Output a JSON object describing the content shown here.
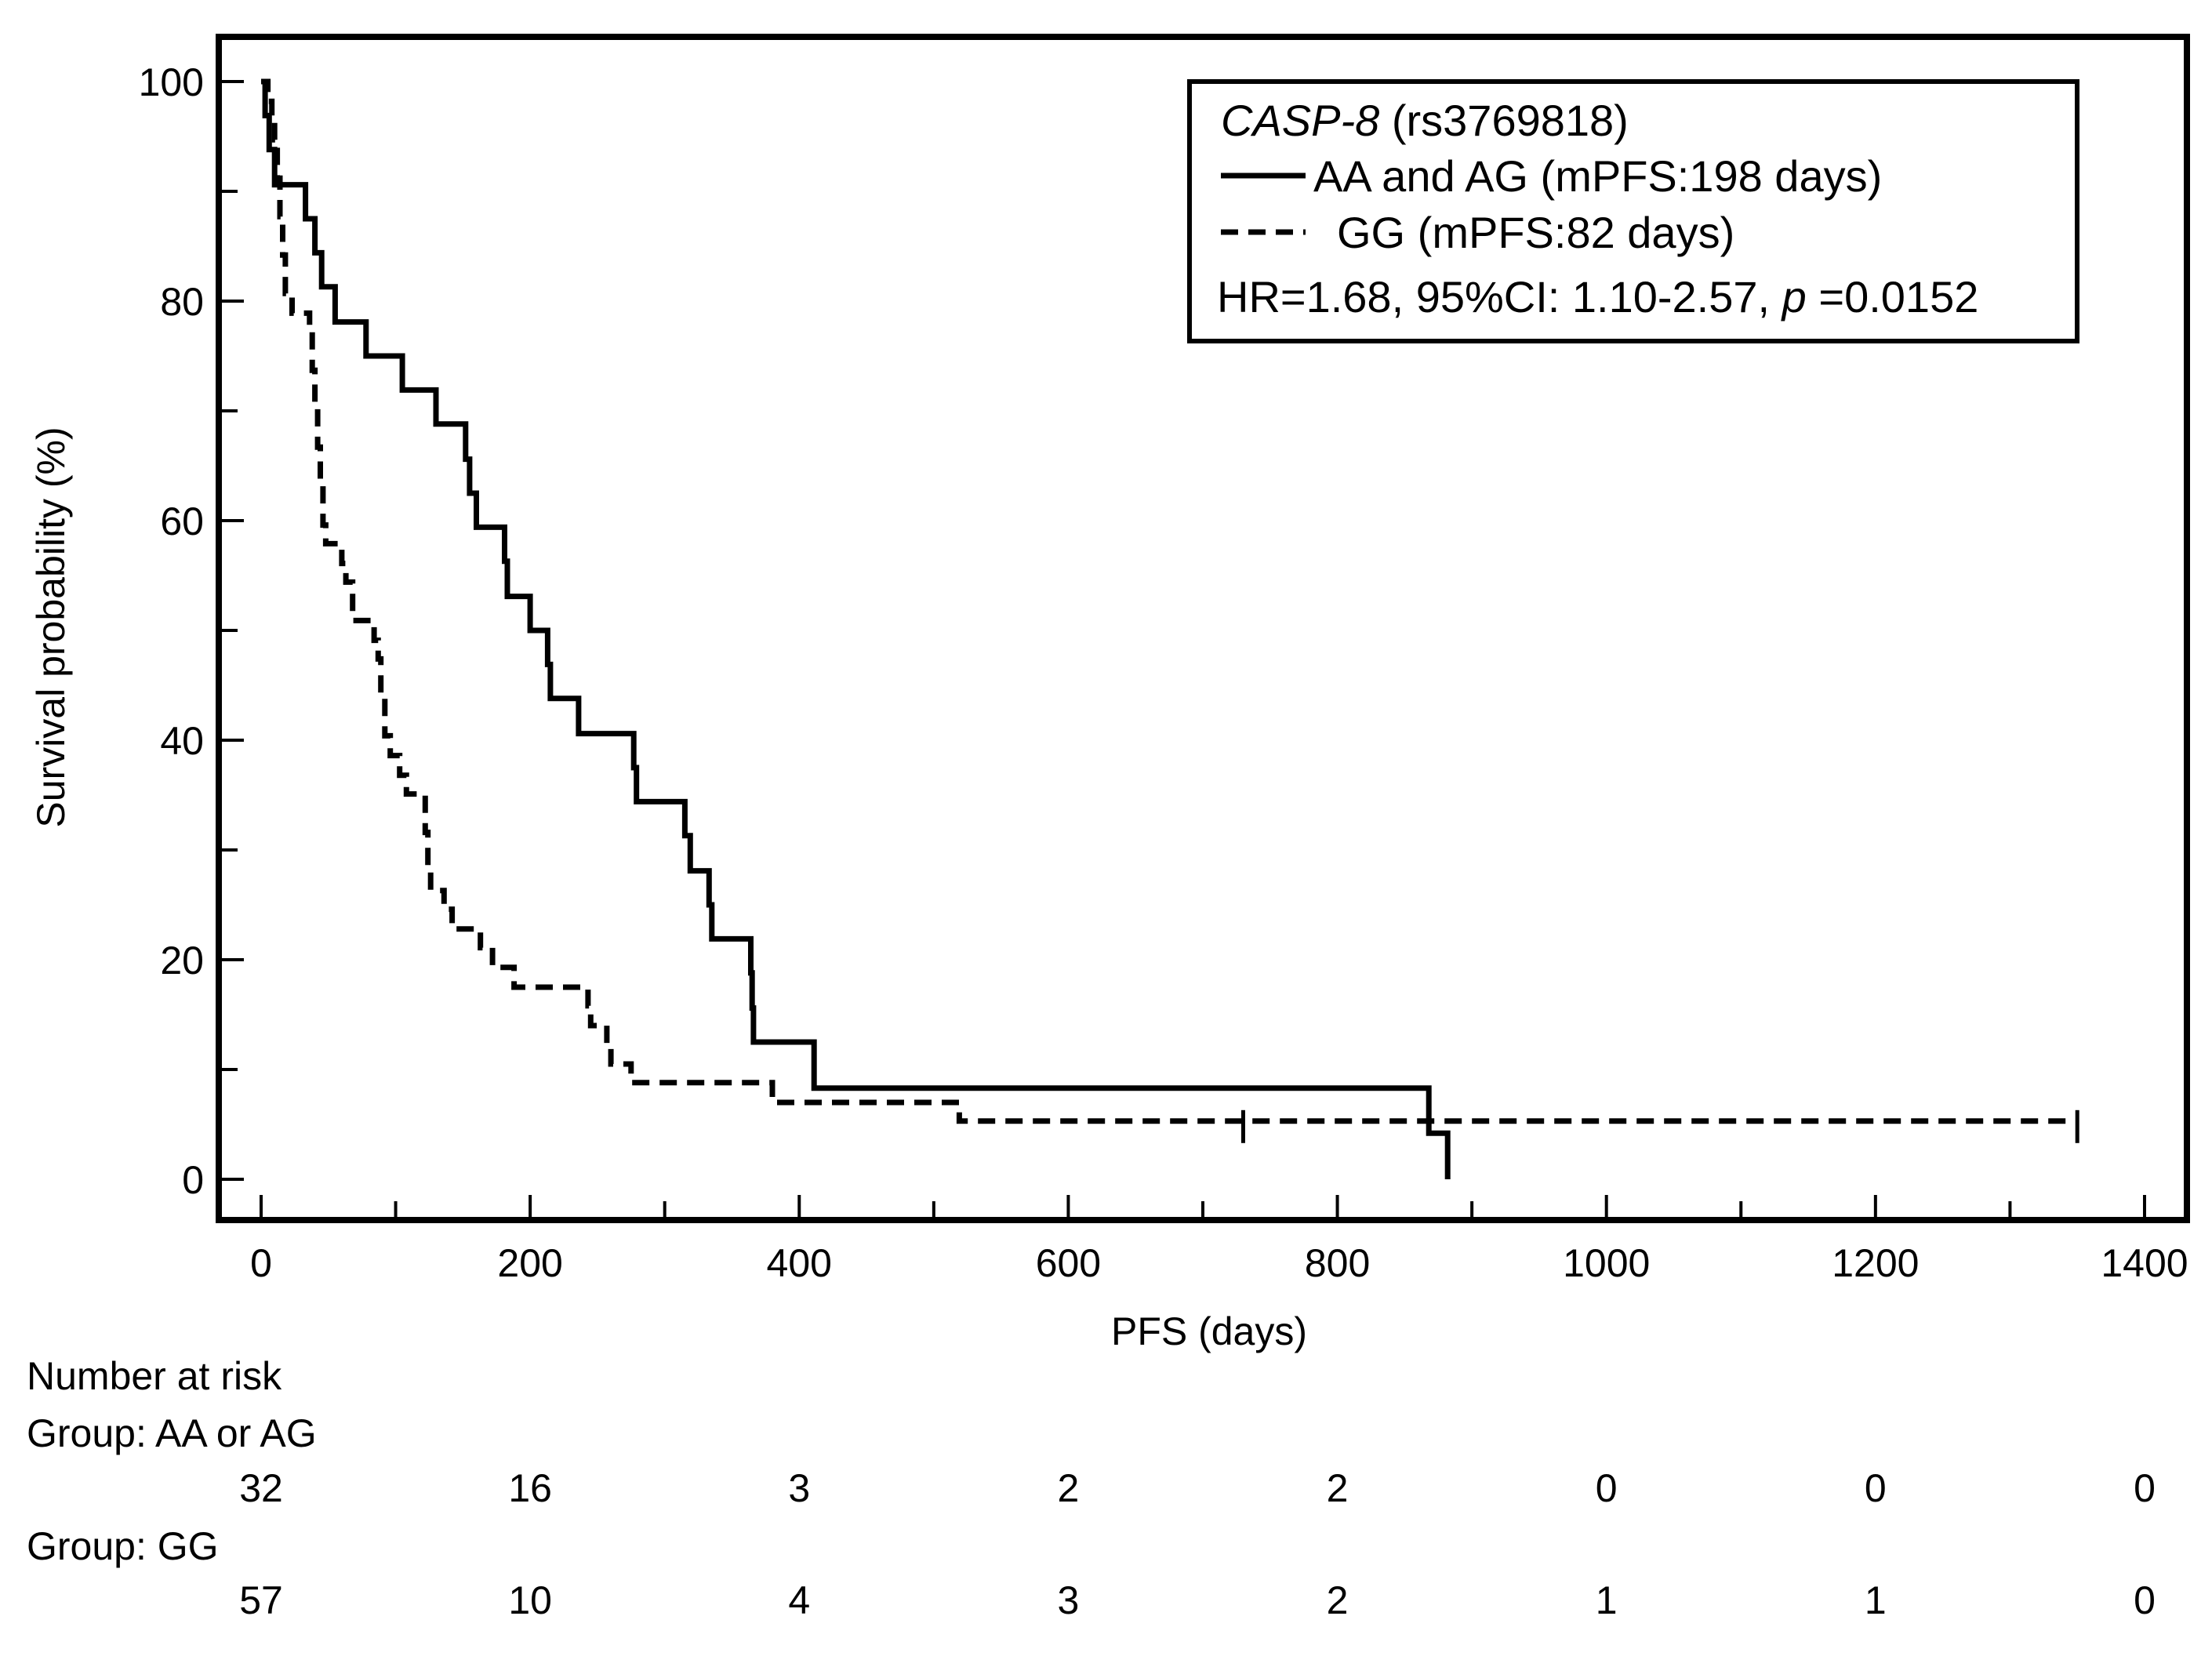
{
  "chart_data": {
    "type": "kaplan-meier",
    "title": "",
    "xlabel": "PFS (days)",
    "ylabel": "Survival probability (%)",
    "xlim": [
      -30,
      1400
    ],
    "ylim": [
      -4,
      104
    ],
    "x_ticks": [
      0,
      200,
      400,
      600,
      800,
      1000,
      1200,
      1400
    ],
    "x_minor_ticks": [
      100,
      300,
      500,
      700,
      900,
      1100,
      1300
    ],
    "y_ticks": [
      0,
      20,
      40,
      60,
      80,
      100
    ],
    "y_minor_ticks": [
      10,
      30,
      50,
      70,
      90
    ],
    "legend": {
      "gene": "CASP-8",
      "snp": "(rs3769818)",
      "entries": [
        "AA and AG (mPFS:198 days)",
        "GG (mPFS:82 days)"
      ],
      "stats_prefix": "HR=1.68, 95%CI: 1.10-2.57, ",
      "stats_p_symbol": "p",
      "stats_p_value": "=0.0152",
      "position": "top-right"
    },
    "series": [
      {
        "name": "AA and AG",
        "style": "solid",
        "steps": [
          [
            0,
            100
          ],
          [
            3,
            96.9
          ],
          [
            6,
            93.8
          ],
          [
            10,
            90.6
          ],
          [
            33,
            87.5
          ],
          [
            40,
            84.4
          ],
          [
            45,
            81.3
          ],
          [
            55,
            78.1
          ],
          [
            78,
            75
          ],
          [
            105,
            71.9
          ],
          [
            130,
            68.8
          ],
          [
            152,
            65.6
          ],
          [
            155,
            62.5
          ],
          [
            160,
            59.4
          ],
          [
            181,
            56.3
          ],
          [
            183,
            53.1
          ],
          [
            200,
            50
          ],
          [
            213,
            46.9
          ],
          [
            215,
            43.8
          ],
          [
            236,
            40.6
          ],
          [
            277,
            37.5
          ],
          [
            279,
            34.4
          ],
          [
            315,
            31.3
          ],
          [
            319,
            28.1
          ],
          [
            333,
            25
          ],
          [
            335,
            21.9
          ],
          [
            364,
            18.8
          ],
          [
            365,
            15.6
          ],
          [
            366,
            12.5
          ],
          [
            411,
            8.3
          ],
          [
            866,
            8.3
          ],
          [
            868,
            4.2
          ],
          [
            881,
            4.2
          ],
          [
            882,
            0
          ]
        ]
      },
      {
        "name": "GG",
        "style": "dashed",
        "steps": [
          [
            0,
            100
          ],
          [
            5,
            98.2
          ],
          [
            8,
            96.5
          ],
          [
            10,
            94.7
          ],
          [
            12,
            91.2
          ],
          [
            14,
            87.7
          ],
          [
            16,
            84.2
          ],
          [
            18,
            80.7
          ],
          [
            23,
            78.9
          ],
          [
            36,
            77.2
          ],
          [
            38,
            73.7
          ],
          [
            40,
            70.2
          ],
          [
            42,
            66.7
          ],
          [
            44,
            63.2
          ],
          [
            46,
            59.6
          ],
          [
            48,
            57.9
          ],
          [
            60,
            56.1
          ],
          [
            63,
            54.4
          ],
          [
            68,
            50.9
          ],
          [
            84,
            49.1
          ],
          [
            87,
            47.4
          ],
          [
            89,
            43.9
          ],
          [
            92,
            40.4
          ],
          [
            96,
            38.6
          ],
          [
            103,
            36.8
          ],
          [
            108,
            35.1
          ],
          [
            122,
            31.6
          ],
          [
            124,
            28.1
          ],
          [
            126,
            26.3
          ],
          [
            136,
            24.6
          ],
          [
            142,
            22.8
          ],
          [
            163,
            21.1
          ],
          [
            172,
            19.3
          ],
          [
            188,
            17.5
          ],
          [
            243,
            15.8
          ],
          [
            245,
            14
          ],
          [
            257,
            12.3
          ],
          [
            260,
            10.5
          ],
          [
            275,
            8.8
          ],
          [
            286,
            8.8
          ],
          [
            380,
            7
          ],
          [
            519,
            5.3
          ],
          [
            1350,
            5.3
          ]
        ],
        "censor_marks": [
          [
            730,
            5.3
          ],
          [
            1350,
            5.3
          ]
        ]
      }
    ],
    "risk_table": {
      "title": "Number at risk",
      "time_points": [
        0,
        200,
        400,
        600,
        800,
        1000,
        1200,
        1400
      ],
      "groups": [
        {
          "label": "Group: AA or AG",
          "counts": [
            32,
            16,
            3,
            2,
            2,
            0,
            0,
            0
          ]
        },
        {
          "label": "Group: GG",
          "counts": [
            57,
            10,
            4,
            3,
            2,
            1,
            1,
            0
          ]
        }
      ]
    }
  }
}
